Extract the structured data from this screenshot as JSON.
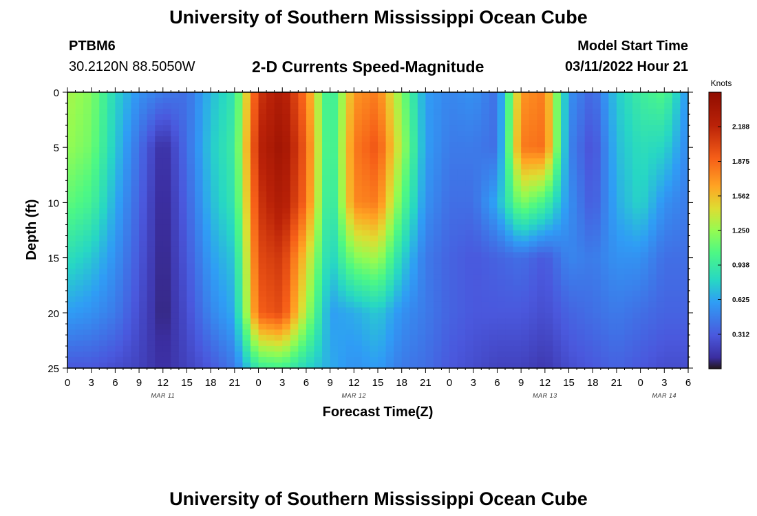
{
  "header": {
    "title": "University of Southern Mississippi Ocean Cube",
    "station": "PTBM6",
    "coordinates": "30.2120N  88.5050W",
    "chart_title": "2-D Currents Speed-Magnitude",
    "model_label": "Model Start Time",
    "model_time": "03/11/2022 Hour 21"
  },
  "footer": {
    "title": "University of Southern Mississippi Ocean Cube"
  },
  "chart_data": {
    "type": "heatmap",
    "title": "2-D Currents Speed-Magnitude",
    "xlabel": "Forecast Time(Z)",
    "ylabel": "Depth (ft)",
    "xlim": [
      0,
      78
    ],
    "ylim": [
      0,
      25
    ],
    "x_tick_labels": [
      "0",
      "3",
      "6",
      "9",
      "12",
      "15",
      "18",
      "21",
      "0",
      "3",
      "6",
      "9",
      "12",
      "15",
      "18",
      "21",
      "0",
      "3",
      "6",
      "9",
      "12",
      "15",
      "18",
      "21",
      "0",
      "3",
      "6"
    ],
    "y_tick_labels": [
      "0",
      "5",
      "10",
      "15",
      "20",
      "25"
    ],
    "date_labels": [
      "MAR 11",
      "MAR 12",
      "MAR 13",
      "MAR 14"
    ],
    "date_label_hours": [
      12,
      36,
      60,
      75
    ],
    "colorbar": {
      "label": "Knots",
      "min": 0.0,
      "max": 2.5,
      "tick_labels": [
        "2.188",
        "1.875",
        "1.562",
        "1.250",
        "0.938",
        "0.625",
        "0.312"
      ],
      "tick_values": [
        2.188,
        1.875,
        1.562,
        1.25,
        0.938,
        0.625,
        0.312
      ]
    },
    "hours": [
      0,
      3,
      6,
      9,
      12,
      15,
      18,
      21,
      24,
      27,
      30,
      33,
      36,
      39,
      42,
      45,
      48,
      51,
      54,
      57,
      60,
      63,
      66,
      69,
      72,
      75,
      78
    ],
    "depths_ft": [
      0,
      5,
      10,
      15,
      20,
      25
    ],
    "values_knots": [
      [
        1.3,
        1.2,
        0.8,
        0.55,
        0.45,
        0.4,
        0.7,
        0.9,
        2.1,
        2.3,
        1.8,
        0.85,
        1.7,
        1.8,
        1.2,
        0.6,
        0.5,
        0.55,
        0.4,
        1.7,
        1.8,
        0.55,
        0.35,
        0.75,
        0.95,
        1.05,
        0.55
      ],
      [
        1.25,
        1.15,
        0.75,
        0.4,
        0.08,
        0.4,
        0.75,
        0.95,
        2.2,
        2.4,
        1.9,
        0.85,
        1.8,
        1.95,
        1.3,
        0.6,
        0.45,
        0.45,
        0.4,
        1.8,
        1.85,
        0.5,
        0.25,
        0.7,
        0.85,
        0.8,
        0.5
      ],
      [
        1.1,
        1.0,
        0.65,
        0.35,
        0.05,
        0.35,
        0.7,
        0.9,
        2.1,
        2.3,
        1.85,
        0.8,
        1.75,
        1.8,
        1.1,
        0.55,
        0.4,
        0.4,
        0.65,
        1.2,
        1.0,
        0.55,
        0.3,
        0.65,
        0.8,
        0.55,
        0.45
      ],
      [
        0.85,
        0.75,
        0.55,
        0.3,
        0.05,
        0.3,
        0.6,
        0.75,
        2.0,
        2.1,
        1.5,
        0.75,
        1.2,
        1.3,
        0.8,
        0.45,
        0.35,
        0.3,
        0.35,
        0.4,
        0.3,
        0.5,
        0.45,
        0.55,
        0.55,
        0.4,
        0.4
      ],
      [
        0.6,
        0.55,
        0.45,
        0.25,
        0.05,
        0.25,
        0.5,
        0.65,
        1.9,
        2.0,
        1.3,
        0.6,
        0.65,
        0.75,
        0.55,
        0.45,
        0.35,
        0.3,
        0.3,
        0.3,
        0.25,
        0.35,
        0.4,
        0.45,
        0.4,
        0.35,
        0.35
      ],
      [
        0.3,
        0.3,
        0.25,
        0.2,
        0.1,
        0.2,
        0.3,
        0.45,
        0.95,
        1.0,
        0.8,
        0.65,
        0.55,
        0.6,
        0.45,
        0.4,
        0.3,
        0.25,
        0.2,
        0.2,
        0.15,
        0.25,
        0.3,
        0.35,
        0.3,
        0.25,
        0.25
      ]
    ]
  }
}
